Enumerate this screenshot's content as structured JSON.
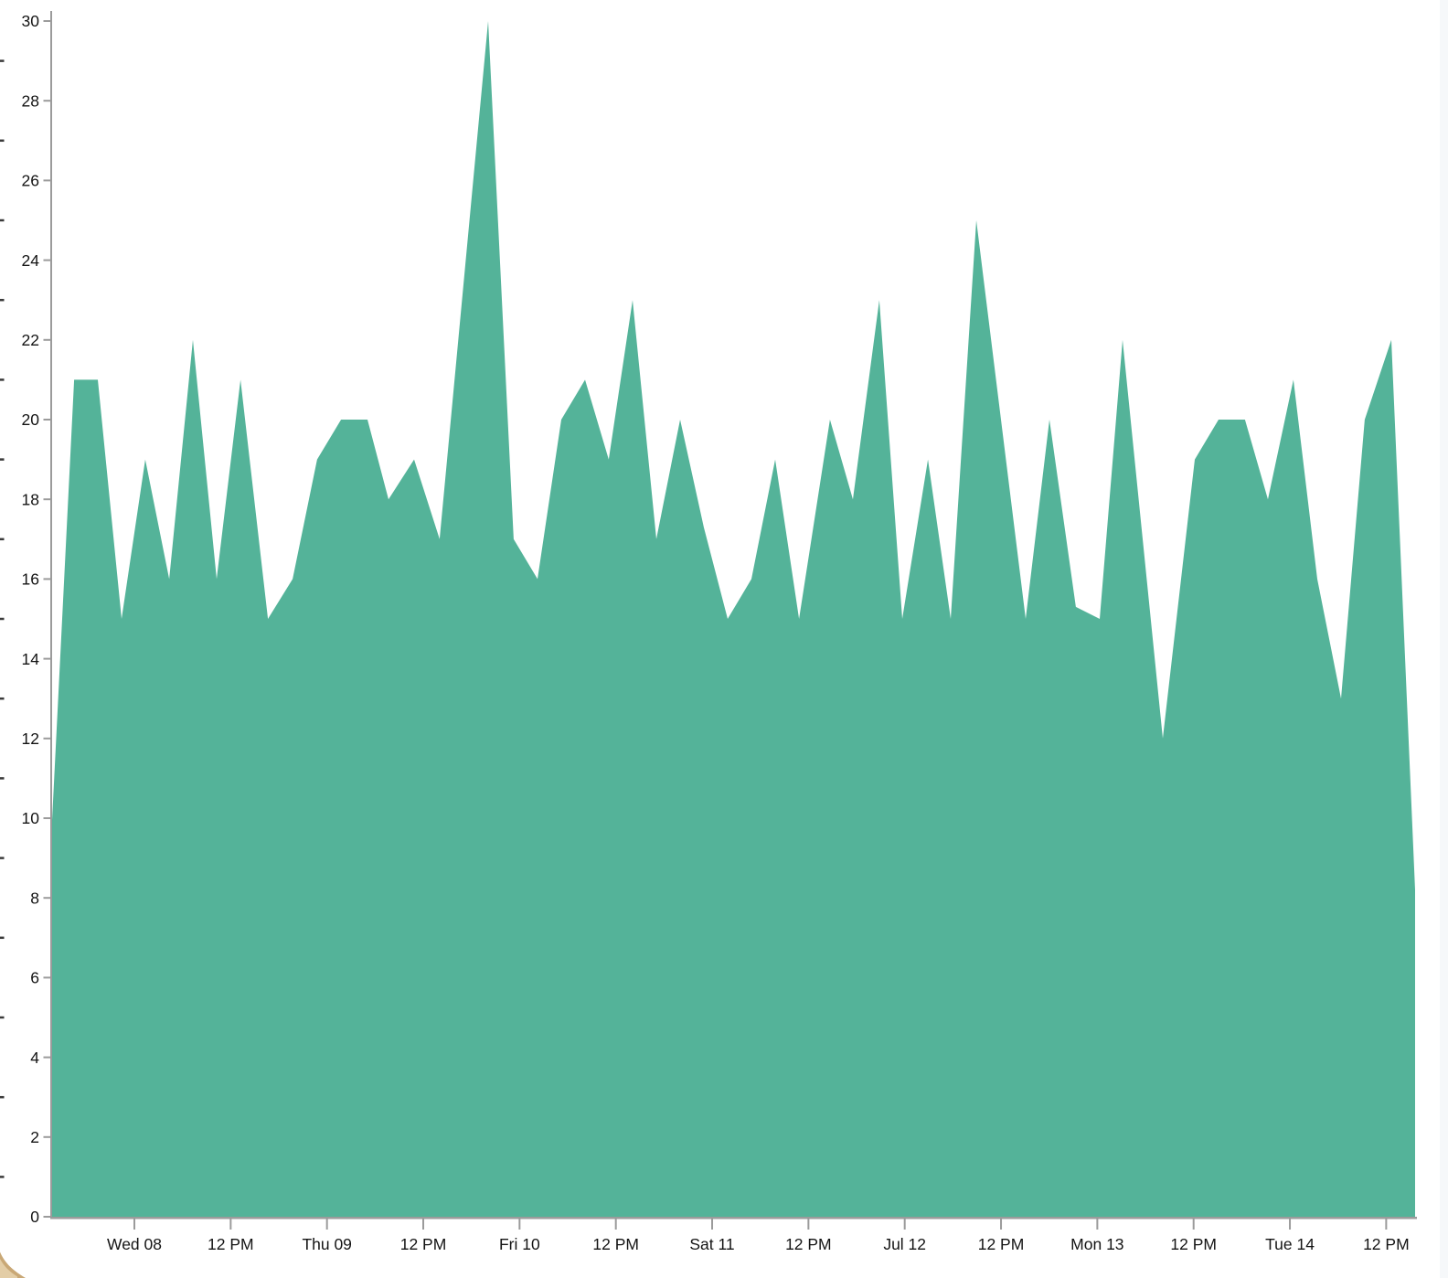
{
  "chart_data": {
    "type": "area",
    "title": "",
    "legend": "none",
    "grid": "off",
    "colors": {
      "fill": "#54B399",
      "axis_line": "#9b9b9b",
      "tick_mark": "#9b9b9b",
      "tick_text": "#141414",
      "edge_stub": "#3a3a3a"
    },
    "y_axis": {
      "min": 0,
      "max": 30,
      "tick_step": 2,
      "tick_labels": [
        "0",
        "2",
        "4",
        "6",
        "8",
        "10",
        "12",
        "14",
        "16",
        "18",
        "20",
        "22",
        "24",
        "26",
        "28",
        "30"
      ],
      "minor_edge_stub_values": [
        1,
        3,
        5,
        7,
        9,
        11,
        13,
        15,
        17,
        19,
        21,
        23,
        25,
        27,
        29
      ]
    },
    "x_axis": {
      "tick_labels": [
        "Wed 08",
        "12 PM",
        "Thu 09",
        "12 PM",
        "Fri 10",
        "12 PM",
        "Sat 11",
        "12 PM",
        "Jul 12",
        "12 PM",
        "Mon 13",
        "12 PM",
        "Tue 14",
        "12 PM"
      ],
      "first_tick_frac": 0.061,
      "tick_step_frac": 0.0706
    },
    "series": [
      {
        "kind": "area",
        "color": "#54B399",
        "points": [
          {
            "f": 0.0,
            "v": 9.5
          },
          {
            "f": 0.0168,
            "v": 21
          },
          {
            "f": 0.0342,
            "v": 21
          },
          {
            "f": 0.0516,
            "v": 15
          },
          {
            "f": 0.069,
            "v": 19
          },
          {
            "f": 0.0865,
            "v": 16
          },
          {
            "f": 0.1039,
            "v": 22
          },
          {
            "f": 0.1213,
            "v": 16
          },
          {
            "f": 0.1388,
            "v": 21
          },
          {
            "f": 0.1589,
            "v": 15
          },
          {
            "f": 0.177,
            "v": 16
          },
          {
            "f": 0.195,
            "v": 19
          },
          {
            "f": 0.2125,
            "v": 20
          },
          {
            "f": 0.2319,
            "v": 20
          },
          {
            "f": 0.2473,
            "v": 18
          },
          {
            "f": 0.2661,
            "v": 19
          },
          {
            "f": 0.2848,
            "v": 17
          },
          {
            "f": 0.3204,
            "v": 30
          },
          {
            "f": 0.3391,
            "v": 17
          },
          {
            "f": 0.3566,
            "v": 16
          },
          {
            "f": 0.374,
            "v": 20
          },
          {
            "f": 0.3914,
            "v": 21
          },
          {
            "f": 0.4088,
            "v": 19
          },
          {
            "f": 0.4263,
            "v": 23
          },
          {
            "f": 0.4437,
            "v": 17
          },
          {
            "f": 0.4611,
            "v": 20
          },
          {
            "f": 0.4785,
            "v": 17.3
          },
          {
            "f": 0.496,
            "v": 15
          },
          {
            "f": 0.5134,
            "v": 16
          },
          {
            "f": 0.5308,
            "v": 19
          },
          {
            "f": 0.5483,
            "v": 15
          },
          {
            "f": 0.571,
            "v": 20
          },
          {
            "f": 0.5878,
            "v": 18
          },
          {
            "f": 0.6072,
            "v": 23
          },
          {
            "f": 0.624,
            "v": 15
          },
          {
            "f": 0.6428,
            "v": 19
          },
          {
            "f": 0.6595,
            "v": 15
          },
          {
            "f": 0.6783,
            "v": 25
          },
          {
            "f": 0.7145,
            "v": 15
          },
          {
            "f": 0.7319,
            "v": 20
          },
          {
            "f": 0.7513,
            "v": 15.3
          },
          {
            "f": 0.7688,
            "v": 15
          },
          {
            "f": 0.7855,
            "v": 22
          },
          {
            "f": 0.815,
            "v": 12
          },
          {
            "f": 0.8385,
            "v": 19
          },
          {
            "f": 0.8559,
            "v": 20
          },
          {
            "f": 0.8753,
            "v": 20
          },
          {
            "f": 0.8921,
            "v": 18
          },
          {
            "f": 0.9108,
            "v": 21
          },
          {
            "f": 0.9283,
            "v": 16
          },
          {
            "f": 0.9457,
            "v": 13
          },
          {
            "f": 0.9631,
            "v": 20
          },
          {
            "f": 0.9826,
            "v": 22
          },
          {
            "f": 1.0,
            "v": 8.2
          }
        ]
      }
    ]
  },
  "decorations": {
    "cursor": {
      "base_color": "#c9a876",
      "highlight_color": "#e3cda6"
    }
  }
}
